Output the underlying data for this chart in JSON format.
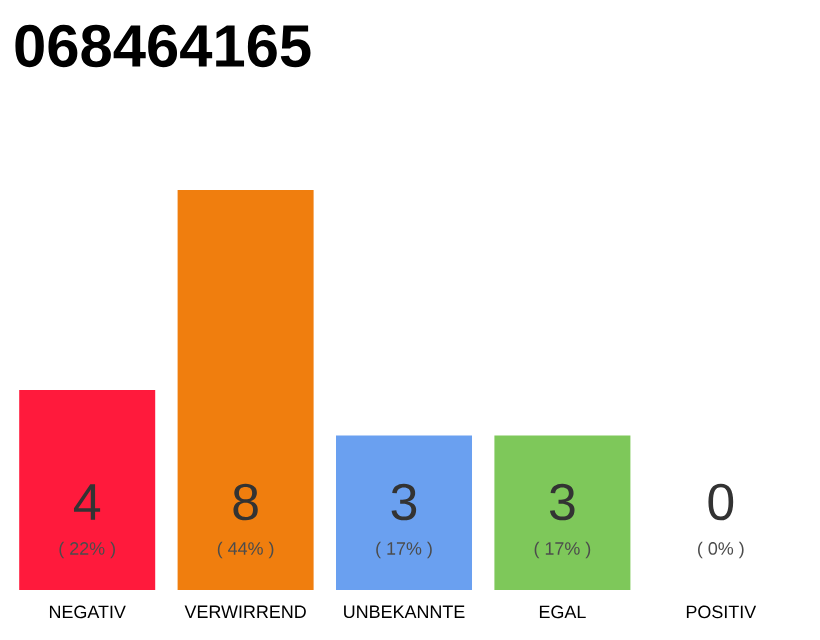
{
  "chart_data": {
    "type": "bar",
    "title": "068464165",
    "categories": [
      "NEGATIV",
      "VERWIRREND",
      "UNBEKANNTE",
      "EGAL",
      "POSITIV"
    ],
    "values": [
      22,
      44,
      17,
      17,
      0
    ],
    "colors": [
      "#ff1a3c",
      "#f07e0e",
      "#6aa0f0",
      "#7ec85a",
      "#cccccc"
    ],
    "value_labels": [
      "( 22% )",
      "( 44% )",
      "( 17% )",
      "( 17% )",
      "( 0% )"
    ],
    "annotations": [
      "4",
      "8",
      "3",
      "3",
      "0"
    ]
  }
}
